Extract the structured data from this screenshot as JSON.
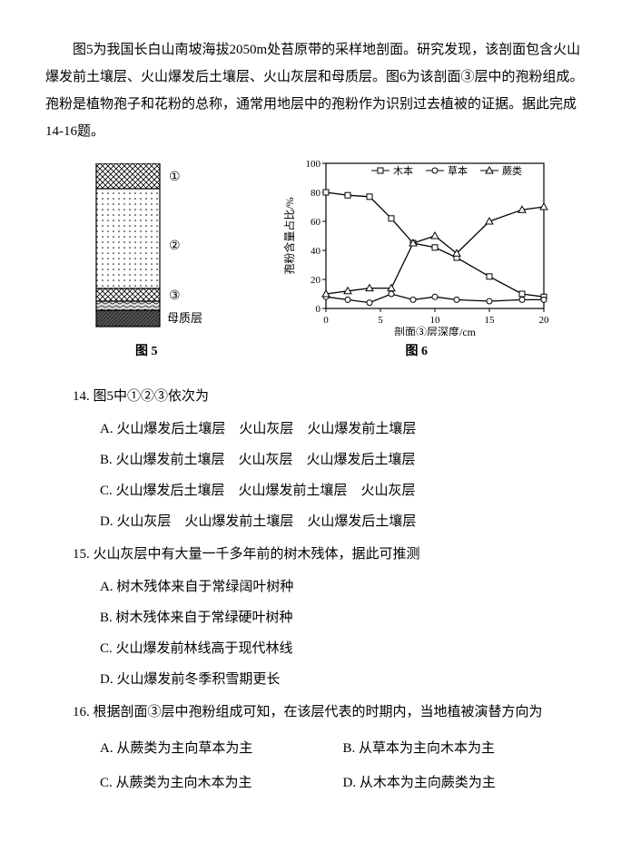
{
  "intro": "图5为我国长白山南坡海拔2050m处苔原带的采样地剖面。研究发现，该剖面包含火山爆发前土壤层、火山爆发后土壤层、火山灰层和母质层。图6为该剖面③层中的孢粉组成。孢粉是植物孢子和花粉的总称，通常用地层中的孢粉作为识别过去植被的证据。据此完成14-16题。",
  "fig5": {
    "caption": "图 5",
    "label_bedrock": "母质层",
    "markers": [
      "①",
      "②",
      "③"
    ],
    "layers": [
      {
        "y": 0,
        "h": 28,
        "fill": "crosshatch"
      },
      {
        "y": 28,
        "h": 110,
        "fill": "dots"
      },
      {
        "y": 138,
        "h": 14,
        "fill": "crosshatch"
      },
      {
        "y": 152,
        "h": 10,
        "fill": "wave"
      },
      {
        "y": 162,
        "h": 18,
        "fill": "darkhatch"
      }
    ]
  },
  "fig6": {
    "caption": "图 6",
    "ylabel": "孢粉含量占比/%",
    "xlabel": "剖面③层深度/cm",
    "ylim": [
      0,
      100
    ],
    "ytick_step": 20,
    "xlim": [
      0,
      20
    ],
    "xtick_step": 5,
    "legend": [
      "木本",
      "草本",
      "蕨类"
    ],
    "series": {
      "muben": {
        "marker": "square",
        "color": "#000",
        "pts": [
          [
            0,
            80
          ],
          [
            2,
            78
          ],
          [
            4,
            77
          ],
          [
            6,
            62
          ],
          [
            8,
            45
          ],
          [
            10,
            42
          ],
          [
            12,
            35
          ],
          [
            15,
            22
          ],
          [
            18,
            10
          ],
          [
            20,
            8
          ]
        ]
      },
      "caoben": {
        "marker": "circle",
        "color": "#000",
        "pts": [
          [
            0,
            8
          ],
          [
            2,
            6
          ],
          [
            4,
            4
          ],
          [
            6,
            10
          ],
          [
            8,
            6
          ],
          [
            10,
            8
          ],
          [
            12,
            6
          ],
          [
            15,
            5
          ],
          [
            18,
            6
          ],
          [
            20,
            6
          ]
        ]
      },
      "juelei": {
        "marker": "triangle",
        "color": "#000",
        "pts": [
          [
            0,
            10
          ],
          [
            2,
            12
          ],
          [
            4,
            14
          ],
          [
            6,
            14
          ],
          [
            8,
            45
          ],
          [
            10,
            50
          ],
          [
            12,
            38
          ],
          [
            15,
            60
          ],
          [
            18,
            68
          ],
          [
            20,
            70
          ]
        ]
      }
    },
    "bg": "#ffffff",
    "grid": "#000000"
  },
  "q14": {
    "stem": "14. 图5中①②③依次为",
    "opts": [
      "A. 火山爆发后土壤层　火山灰层　火山爆发前土壤层",
      "B. 火山爆发前土壤层　火山灰层　火山爆发后土壤层",
      "C. 火山爆发后土壤层　火山爆发前土壤层　火山灰层",
      "D. 火山灰层　火山爆发前土壤层　火山爆发后土壤层"
    ]
  },
  "q15": {
    "stem": "15. 火山灰层中有大量一千多年前的树木残体，据此可推测",
    "opts": [
      "A. 树木残体来自于常绿阔叶树种",
      "B. 树木残体来自于常绿硬叶树种",
      "C. 火山爆发前林线高于现代林线",
      "D. 火山爆发前冬季积雪期更长"
    ]
  },
  "q16": {
    "stem": "16. 根据剖面③层中孢粉组成可知，在该层代表的时期内，当地植被演替方向为",
    "opts": [
      "A. 从蕨类为主向草本为主",
      "B. 从草本为主向木本为主",
      "C. 从蕨类为主向木本为主",
      "D. 从木本为主向蕨类为主"
    ]
  }
}
